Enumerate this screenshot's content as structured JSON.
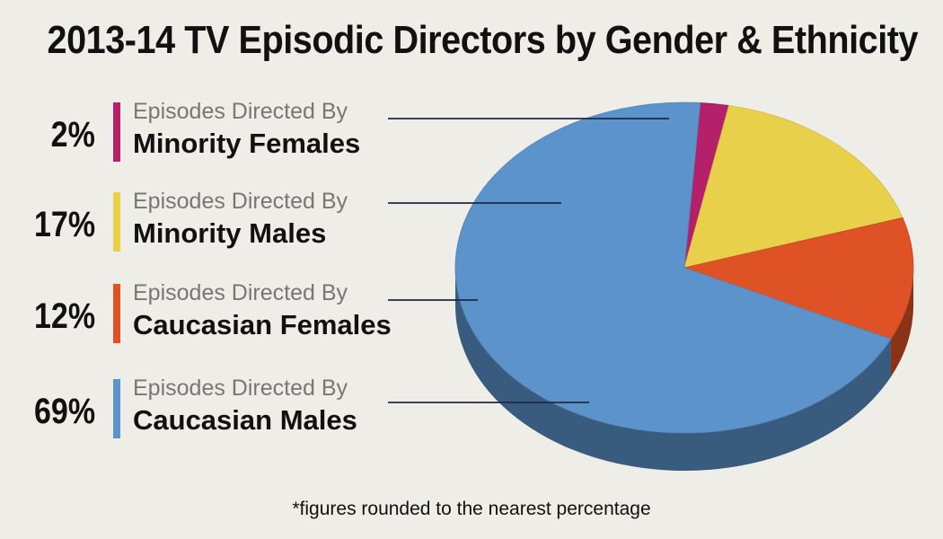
{
  "chart_data": {
    "type": "pie",
    "title": "2013-14 TV Episodic Directors by Gender & Ethnicity",
    "footnote": "*figures rounded to the nearest percentage",
    "slices": [
      {
        "prefix": "Episodes Directed By",
        "label": "Minority Females",
        "value": 2,
        "value_label": "2%",
        "color": "#B5206B"
      },
      {
        "prefix": "Episodes Directed By",
        "label": "Minority Males",
        "value": 17,
        "value_label": "17%",
        "color": "#E9D04B"
      },
      {
        "prefix": "Episodes Directed By",
        "label": "Caucasian Females",
        "value": 12,
        "value_label": "12%",
        "color": "#DE5226"
      },
      {
        "prefix": "Episodes Directed By",
        "label": "Caucasian Males",
        "value": 69,
        "value_label": "69%",
        "color": "#5C93CB"
      }
    ]
  }
}
